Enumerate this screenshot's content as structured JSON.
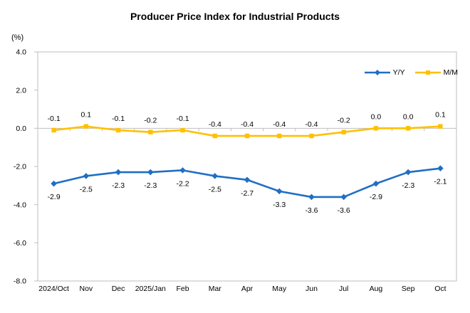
{
  "chart_data": {
    "type": "line",
    "title": "Producer Price Index for Industrial Products",
    "ylabel": "(%)",
    "xlabel": "",
    "categories": [
      "2024/Oct",
      "Nov",
      "Dec",
      "2025/Jan",
      "Feb",
      "Mar",
      "Apr",
      "May",
      "Jun",
      "Jul",
      "Aug",
      "Sep",
      "Oct"
    ],
    "series": [
      {
        "name": "Y/Y",
        "color": "#1F6FC4",
        "marker": "diamond",
        "label_position": "below",
        "values": [
          -2.9,
          -2.5,
          -2.3,
          -2.3,
          -2.2,
          -2.5,
          -2.7,
          -3.3,
          -3.6,
          -3.6,
          -2.9,
          -2.3,
          -2.1
        ]
      },
      {
        "name": "M/M",
        "color": "#FFC000",
        "marker": "square",
        "label_position": "above",
        "values": [
          -0.1,
          0.1,
          -0.1,
          -0.2,
          -0.1,
          -0.4,
          -0.4,
          -0.4,
          -0.4,
          -0.2,
          0.0,
          0.0,
          0.1
        ]
      }
    ],
    "ylim": [
      -8.0,
      4.0
    ],
    "ytick_step": 2.0,
    "yticks": [
      "4.0",
      "2.0",
      "0.0",
      "-2.0",
      "-4.0",
      "-6.0",
      "-8.0"
    ],
    "grid": false,
    "data_labels": true,
    "legend_position": "top-right",
    "axis_color": "#BFBFBF",
    "text_color": "#000000"
  }
}
